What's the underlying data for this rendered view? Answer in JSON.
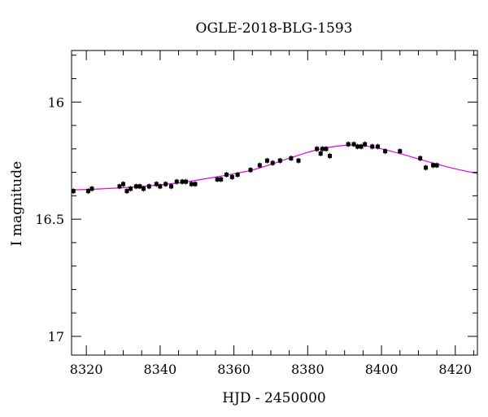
{
  "chart_data": {
    "type": "scatter",
    "title": "OGLE-2018-BLG-1593",
    "xlabel": "HJD - 2450000",
    "ylabel": "I magnitude",
    "xlim": [
      8316,
      8426
    ],
    "ylim": [
      17.08,
      15.78
    ],
    "y_inverted": true,
    "x_ticks": [
      8320,
      8340,
      8360,
      8380,
      8400,
      8420
    ],
    "y_ticks": [
      16,
      16.5,
      17
    ],
    "x_tick_labels": [
      "8320",
      "8340",
      "8360",
      "8380",
      "8400",
      "8420"
    ],
    "y_tick_labels": [
      "16",
      "16.5",
      "17"
    ],
    "grid": false,
    "point_color": "#000000",
    "model_color": "#e600e6",
    "series": [
      {
        "kind": "points",
        "x": [
          8316.5,
          8320.5,
          8321.5,
          8329.0,
          8330.0,
          8331.0,
          8332.0,
          8333.5,
          8334.5,
          8335.5,
          8337.0,
          8339.0,
          8340.0,
          8341.5,
          8343.0,
          8344.5,
          8346.0,
          8347.0,
          8348.5,
          8349.5,
          8355.5,
          8356.5,
          8358.0,
          8359.5,
          8361.0,
          8364.5,
          8367.0,
          8369.0,
          8370.5,
          8372.5,
          8375.5,
          8377.5,
          8382.5,
          8383.5,
          8384.0,
          8385.0,
          8386.0,
          8391.0,
          8392.5,
          8393.5,
          8394.5,
          8395.5,
          8397.5,
          8399.0,
          8401.0,
          8405.0,
          8410.5,
          8412.0,
          8414.0,
          8415.0
        ],
        "y": [
          16.38,
          16.38,
          16.37,
          16.36,
          16.35,
          16.38,
          16.37,
          16.36,
          16.36,
          16.37,
          16.36,
          16.35,
          16.36,
          16.35,
          16.36,
          16.34,
          16.34,
          16.34,
          16.35,
          16.35,
          16.33,
          16.33,
          16.31,
          16.32,
          16.31,
          16.29,
          16.27,
          16.25,
          16.26,
          16.25,
          16.24,
          16.25,
          16.2,
          16.22,
          16.2,
          16.2,
          16.23,
          16.18,
          16.18,
          16.19,
          16.19,
          16.18,
          16.19,
          16.19,
          16.21,
          16.21,
          16.24,
          16.28,
          16.27,
          16.27
        ],
        "yerr": 0.012
      },
      {
        "kind": "model",
        "x": [
          8316,
          8325,
          8335,
          8345,
          8355,
          8365,
          8375,
          8380,
          8385,
          8390,
          8392,
          8395,
          8400,
          8405,
          8410,
          8415,
          8420,
          8426
        ],
        "y": [
          16.375,
          16.37,
          16.36,
          16.345,
          16.32,
          16.29,
          16.24,
          16.215,
          16.195,
          16.185,
          16.183,
          16.186,
          16.2,
          16.22,
          16.243,
          16.265,
          16.285,
          16.305
        ]
      }
    ]
  }
}
